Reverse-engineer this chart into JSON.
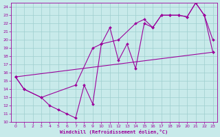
{
  "xlabel": "Windchill (Refroidissement éolien,°C)",
  "xlim": [
    -0.5,
    23.5
  ],
  "ylim": [
    10,
    24.5
  ],
  "yticks": [
    10,
    11,
    12,
    13,
    14,
    15,
    16,
    17,
    18,
    19,
    20,
    21,
    22,
    23,
    24
  ],
  "xticks": [
    0,
    1,
    2,
    3,
    4,
    5,
    6,
    7,
    8,
    9,
    10,
    11,
    12,
    13,
    14,
    15,
    16,
    17,
    18,
    19,
    20,
    21,
    22,
    23
  ],
  "bg_color": "#c8eaea",
  "grid_color": "#9ecece",
  "line_color": "#9b009b",
  "line1_x": [
    0,
    1,
    3,
    4,
    5,
    6,
    7,
    8,
    9,
    10,
    11,
    12,
    13,
    14,
    15,
    16,
    17,
    18,
    19,
    20,
    21,
    22,
    23
  ],
  "line1_y": [
    15.5,
    14.0,
    13.0,
    12.0,
    11.5,
    11.0,
    10.5,
    14.5,
    12.2,
    19.5,
    21.5,
    17.5,
    19.5,
    16.5,
    22.0,
    21.5,
    23.0,
    23.0,
    23.0,
    22.8,
    24.5,
    23.0,
    20.0
  ],
  "line2_x": [
    0,
    1,
    3,
    7,
    9,
    10,
    12,
    14,
    15,
    16,
    17,
    18,
    19,
    20,
    21,
    22,
    23
  ],
  "line2_y": [
    15.5,
    14.0,
    13.0,
    14.5,
    19.0,
    19.5,
    20.0,
    22.0,
    22.5,
    21.5,
    23.0,
    23.0,
    23.0,
    22.8,
    24.5,
    23.0,
    18.5
  ],
  "line3_x": [
    0,
    23
  ],
  "line3_y": [
    15.5,
    18.5
  ]
}
